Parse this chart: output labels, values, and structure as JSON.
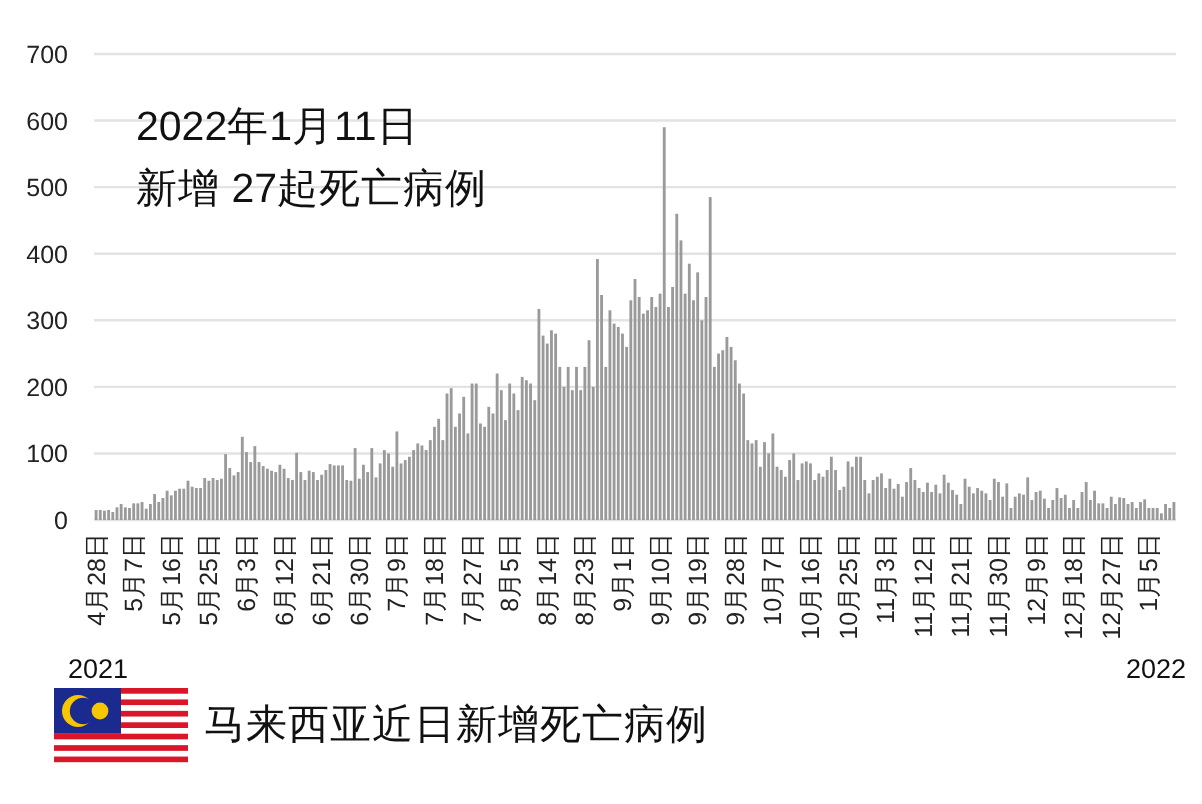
{
  "chart_data": {
    "type": "bar",
    "title": "2022年1月11日",
    "subtitle": "新增 27起死亡病例",
    "categories": [
      "4月28日",
      null,
      null,
      null,
      null,
      null,
      null,
      null,
      null,
      "5月7日",
      null,
      null,
      null,
      null,
      null,
      null,
      null,
      null,
      "5月16日",
      null,
      null,
      null,
      null,
      null,
      null,
      null,
      null,
      "5月25日",
      null,
      null,
      null,
      null,
      null,
      null,
      null,
      null,
      "6月3日",
      null,
      null,
      null,
      null,
      null,
      null,
      null,
      null,
      "6月12日",
      null,
      null,
      null,
      null,
      null,
      null,
      null,
      null,
      "6月21日",
      null,
      null,
      null,
      null,
      null,
      null,
      null,
      null,
      "6月30日",
      null,
      null,
      null,
      null,
      null,
      null,
      null,
      null,
      "7月9日",
      null,
      null,
      null,
      null,
      null,
      null,
      null,
      null,
      "7月18日",
      null,
      null,
      null,
      null,
      null,
      null,
      null,
      null,
      "7月27日",
      null,
      null,
      null,
      null,
      null,
      null,
      null,
      null,
      "8月5日",
      null,
      null,
      null,
      null,
      null,
      null,
      null,
      null,
      "8月14日",
      null,
      null,
      null,
      null,
      null,
      null,
      null,
      null,
      "8月23日",
      null,
      null,
      null,
      null,
      null,
      null,
      null,
      null,
      "9月1日",
      null,
      null,
      null,
      null,
      null,
      null,
      null,
      null,
      "9月10日",
      null,
      null,
      null,
      null,
      null,
      null,
      null,
      null,
      "9月19日",
      null,
      null,
      null,
      null,
      null,
      null,
      null,
      null,
      "9月28日",
      null,
      null,
      null,
      null,
      null,
      null,
      null,
      null,
      "10月7日",
      null,
      null,
      null,
      null,
      null,
      null,
      null,
      null,
      "10月16日",
      null,
      null,
      null,
      null,
      null,
      null,
      null,
      null,
      "10月25日",
      null,
      null,
      null,
      null,
      null,
      null,
      null,
      null,
      "11月3日",
      null,
      null,
      null,
      null,
      null,
      null,
      null,
      null,
      "11月12日",
      null,
      null,
      null,
      null,
      null,
      null,
      null,
      null,
      "11月21日",
      null,
      null,
      null,
      null,
      null,
      null,
      null,
      null,
      "11月30日",
      null,
      null,
      null,
      null,
      null,
      null,
      null,
      null,
      "12月9日",
      null,
      null,
      null,
      null,
      null,
      null,
      null,
      null,
      "12月18日",
      null,
      null,
      null,
      null,
      null,
      null,
      null,
      null,
      "12月27日",
      null,
      null,
      null,
      null,
      null,
      null,
      null,
      null,
      "1月5日",
      null,
      null,
      null,
      null,
      null,
      null
    ],
    "values": [
      15,
      15,
      14,
      15,
      12,
      19,
      24,
      19,
      18,
      25,
      25,
      27,
      17,
      24,
      39,
      27,
      33,
      44,
      37,
      44,
      47,
      47,
      59,
      50,
      48,
      48,
      63,
      59,
      63,
      60,
      62,
      99,
      78,
      67,
      72,
      125,
      102,
      87,
      111,
      87,
      81,
      77,
      74,
      72,
      83,
      77,
      63,
      60,
      101,
      72,
      60,
      74,
      72,
      60,
      68,
      75,
      84,
      82,
      82,
      82,
      60,
      59,
      108,
      62,
      83,
      72,
      108,
      64,
      85,
      105,
      100,
      80,
      133,
      85,
      90,
      95,
      105,
      115,
      112,
      105,
      120,
      140,
      152,
      120,
      190,
      198,
      140,
      160,
      185,
      130,
      205,
      205,
      145,
      140,
      170,
      160,
      220,
      195,
      150,
      205,
      190,
      165,
      215,
      210,
      205,
      180,
      317,
      277,
      265,
      285,
      280,
      230,
      200,
      230,
      195,
      230,
      195,
      230,
      270,
      200,
      392,
      338,
      230,
      315,
      295,
      290,
      280,
      260,
      330,
      362,
      335,
      310,
      315,
      335,
      320,
      340,
      590,
      320,
      350,
      460,
      420,
      340,
      385,
      330,
      372,
      300,
      335,
      485,
      230,
      250,
      255,
      275,
      260,
      240,
      205,
      190,
      120,
      115,
      120,
      80,
      117,
      100,
      130,
      80,
      75,
      65,
      90,
      100,
      60,
      85,
      88,
      85,
      60,
      70,
      65,
      75,
      95,
      75,
      45,
      50,
      88,
      80,
      95,
      95,
      60,
      40,
      60,
      65,
      70,
      48,
      62,
      47,
      54,
      35,
      57,
      78,
      60,
      48,
      42,
      56,
      42,
      53,
      40,
      68,
      56,
      45,
      38,
      24,
      62,
      50,
      40,
      48,
      44,
      40,
      30,
      62,
      57,
      35,
      55,
      18,
      35,
      40,
      38,
      64,
      30,
      42,
      44,
      32,
      18,
      30,
      48,
      33,
      38,
      18,
      30,
      18,
      42,
      57,
      30,
      44,
      25,
      25,
      18,
      35,
      24,
      34,
      33,
      24,
      27,
      18,
      27,
      31,
      18,
      18,
      18,
      10,
      24,
      18,
      27
    ],
    "color": "#9a9a9a",
    "ylim": [
      0,
      700
    ],
    "yticks": [
      0,
      100,
      200,
      300,
      400,
      500,
      600,
      700
    ],
    "grid": "y",
    "annotations": [
      "2021",
      "2022",
      "马来西亚近日新增死亡病例"
    ]
  }
}
